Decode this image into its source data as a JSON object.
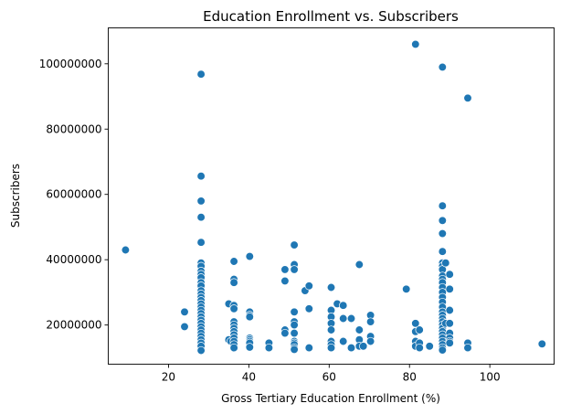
{
  "chart_data": {
    "type": "scatter",
    "title": "Education Enrollment vs. Subscribers",
    "xlabel": "Gross Tertiary Education Enrollment (%)",
    "ylabel": "Subscribers",
    "xlim": [
      5,
      116
    ],
    "ylim": [
      8000000,
      111000000
    ],
    "x_ticks": [
      20,
      40,
      60,
      80,
      100
    ],
    "y_ticks": [
      20000000,
      40000000,
      60000000,
      80000000,
      100000000
    ],
    "y_tick_labels": [
      "20000000",
      "40000000",
      "60000000",
      "80000000",
      "100000000"
    ],
    "grid": false,
    "legend": "none",
    "marker_color": "#1f77b4",
    "marker_edge": "#ffffff",
    "points": [
      [
        9.3,
        43000000
      ],
      [
        24,
        24000000
      ],
      [
        24,
        19500000
      ],
      [
        28.1,
        96800000
      ],
      [
        28.1,
        65600000
      ],
      [
        28.1,
        58000000
      ],
      [
        28.1,
        53000000
      ],
      [
        28.1,
        45300000
      ],
      [
        28.1,
        39000000
      ],
      [
        28.1,
        38000000
      ],
      [
        28.1,
        36500000
      ],
      [
        28.1,
        35500000
      ],
      [
        28.1,
        34500000
      ],
      [
        28.1,
        33000000
      ],
      [
        28.1,
        32000000
      ],
      [
        28.1,
        30500000
      ],
      [
        28.1,
        29500000
      ],
      [
        28.1,
        28500000
      ],
      [
        28.1,
        27500000
      ],
      [
        28.1,
        26500000
      ],
      [
        28.1,
        25500000
      ],
      [
        28.1,
        24500000
      ],
      [
        28.1,
        23500000
      ],
      [
        28.1,
        22500000
      ],
      [
        28.1,
        21500000
      ],
      [
        28.1,
        20500000
      ],
      [
        28.1,
        19500000
      ],
      [
        28.1,
        18500000
      ],
      [
        28.1,
        17500000
      ],
      [
        28.1,
        16500000
      ],
      [
        28.1,
        15500000
      ],
      [
        28.1,
        14500000
      ],
      [
        28.1,
        13500000
      ],
      [
        28.1,
        12200000
      ],
      [
        35,
        26500000
      ],
      [
        35,
        15500000
      ],
      [
        35.5,
        15000000
      ],
      [
        36.3,
        39500000
      ],
      [
        36.3,
        34000000
      ],
      [
        36.3,
        33000000
      ],
      [
        36.3,
        26000000
      ],
      [
        36.3,
        25000000
      ],
      [
        36.3,
        21000000
      ],
      [
        36.3,
        20000000
      ],
      [
        36.3,
        19000000
      ],
      [
        36.3,
        18000000
      ],
      [
        36.3,
        17000000
      ],
      [
        36.3,
        16000000
      ],
      [
        36.3,
        15000000
      ],
      [
        36.3,
        14000000
      ],
      [
        36.3,
        13000000
      ],
      [
        40.2,
        41000000
      ],
      [
        40.2,
        24000000
      ],
      [
        40.2,
        23000000
      ],
      [
        40.2,
        22500000
      ],
      [
        40.2,
        16000000
      ],
      [
        40.2,
        15500000
      ],
      [
        40.2,
        15000000
      ],
      [
        40.2,
        14500000
      ],
      [
        40.2,
        13200000
      ],
      [
        45,
        14500000
      ],
      [
        45,
        13000000
      ],
      [
        49,
        37000000
      ],
      [
        49,
        33500000
      ],
      [
        49,
        18500000
      ],
      [
        49,
        17500000
      ],
      [
        51.3,
        44500000
      ],
      [
        51.3,
        38500000
      ],
      [
        51.3,
        37000000
      ],
      [
        51.3,
        24000000
      ],
      [
        51.3,
        21000000
      ],
      [
        51.3,
        20000000
      ],
      [
        51.3,
        17500000
      ],
      [
        51.3,
        15000000
      ],
      [
        51.3,
        14500000
      ],
      [
        51.3,
        14000000
      ],
      [
        51.3,
        13000000
      ],
      [
        51.3,
        12500000
      ],
      [
        54,
        30500000
      ],
      [
        55,
        32000000
      ],
      [
        55,
        25000000
      ],
      [
        55,
        13000000
      ],
      [
        60.5,
        31500000
      ],
      [
        60.5,
        24500000
      ],
      [
        60.5,
        22500000
      ],
      [
        60.5,
        20500000
      ],
      [
        60.5,
        18500000
      ],
      [
        60.5,
        15000000
      ],
      [
        60.5,
        14000000
      ],
      [
        60.5,
        13000000
      ],
      [
        62,
        26500000
      ],
      [
        63.5,
        26000000
      ],
      [
        63.5,
        22000000
      ],
      [
        63.5,
        15000000
      ],
      [
        65.5,
        22000000
      ],
      [
        65.5,
        13000000
      ],
      [
        67.5,
        38500000
      ],
      [
        67.5,
        18500000
      ],
      [
        67.5,
        15500000
      ],
      [
        67.5,
        13500000
      ],
      [
        68.5,
        13500000
      ],
      [
        70.3,
        23000000
      ],
      [
        70.3,
        21000000
      ],
      [
        70.3,
        16500000
      ],
      [
        70.3,
        15000000
      ],
      [
        79.2,
        31000000
      ],
      [
        81.5,
        106000000
      ],
      [
        81.5,
        20500000
      ],
      [
        81.5,
        18000000
      ],
      [
        81.5,
        15000000
      ],
      [
        81.5,
        13500000
      ],
      [
        82.5,
        18500000
      ],
      [
        82.5,
        14500000
      ],
      [
        82.5,
        13000000
      ],
      [
        85,
        13500000
      ],
      [
        88.2,
        99000000
      ],
      [
        88.2,
        56500000
      ],
      [
        88.2,
        52000000
      ],
      [
        88.2,
        48000000
      ],
      [
        88.2,
        42500000
      ],
      [
        88.2,
        39000000
      ],
      [
        88.2,
        38000000
      ],
      [
        88.2,
        37000000
      ],
      [
        88.2,
        35000000
      ],
      [
        88.2,
        34000000
      ],
      [
        88.2,
        33000000
      ],
      [
        88.2,
        31500000
      ],
      [
        88.2,
        30000000
      ],
      [
        88.2,
        28500000
      ],
      [
        88.2,
        27000000
      ],
      [
        88.2,
        25500000
      ],
      [
        88.2,
        24000000
      ],
      [
        88.2,
        23000000
      ],
      [
        88.2,
        22000000
      ],
      [
        88.2,
        21000000
      ],
      [
        88.2,
        20000000
      ],
      [
        88.2,
        19000000
      ],
      [
        88.2,
        18000000
      ],
      [
        88.2,
        17000000
      ],
      [
        88.2,
        16000000
      ],
      [
        88.2,
        15000000
      ],
      [
        88.2,
        14000000
      ],
      [
        88.2,
        13000000
      ],
      [
        88.2,
        12300000
      ],
      [
        89,
        39000000
      ],
      [
        89,
        20500000
      ],
      [
        90,
        35500000
      ],
      [
        90,
        31000000
      ],
      [
        90,
        24500000
      ],
      [
        90,
        20500000
      ],
      [
        90,
        17500000
      ],
      [
        90,
        16000000
      ],
      [
        90,
        15000000
      ],
      [
        90,
        14500000
      ],
      [
        94.5,
        89500000
      ],
      [
        94.5,
        14500000
      ],
      [
        94.5,
        13000000
      ],
      [
        113,
        14200000
      ]
    ]
  }
}
